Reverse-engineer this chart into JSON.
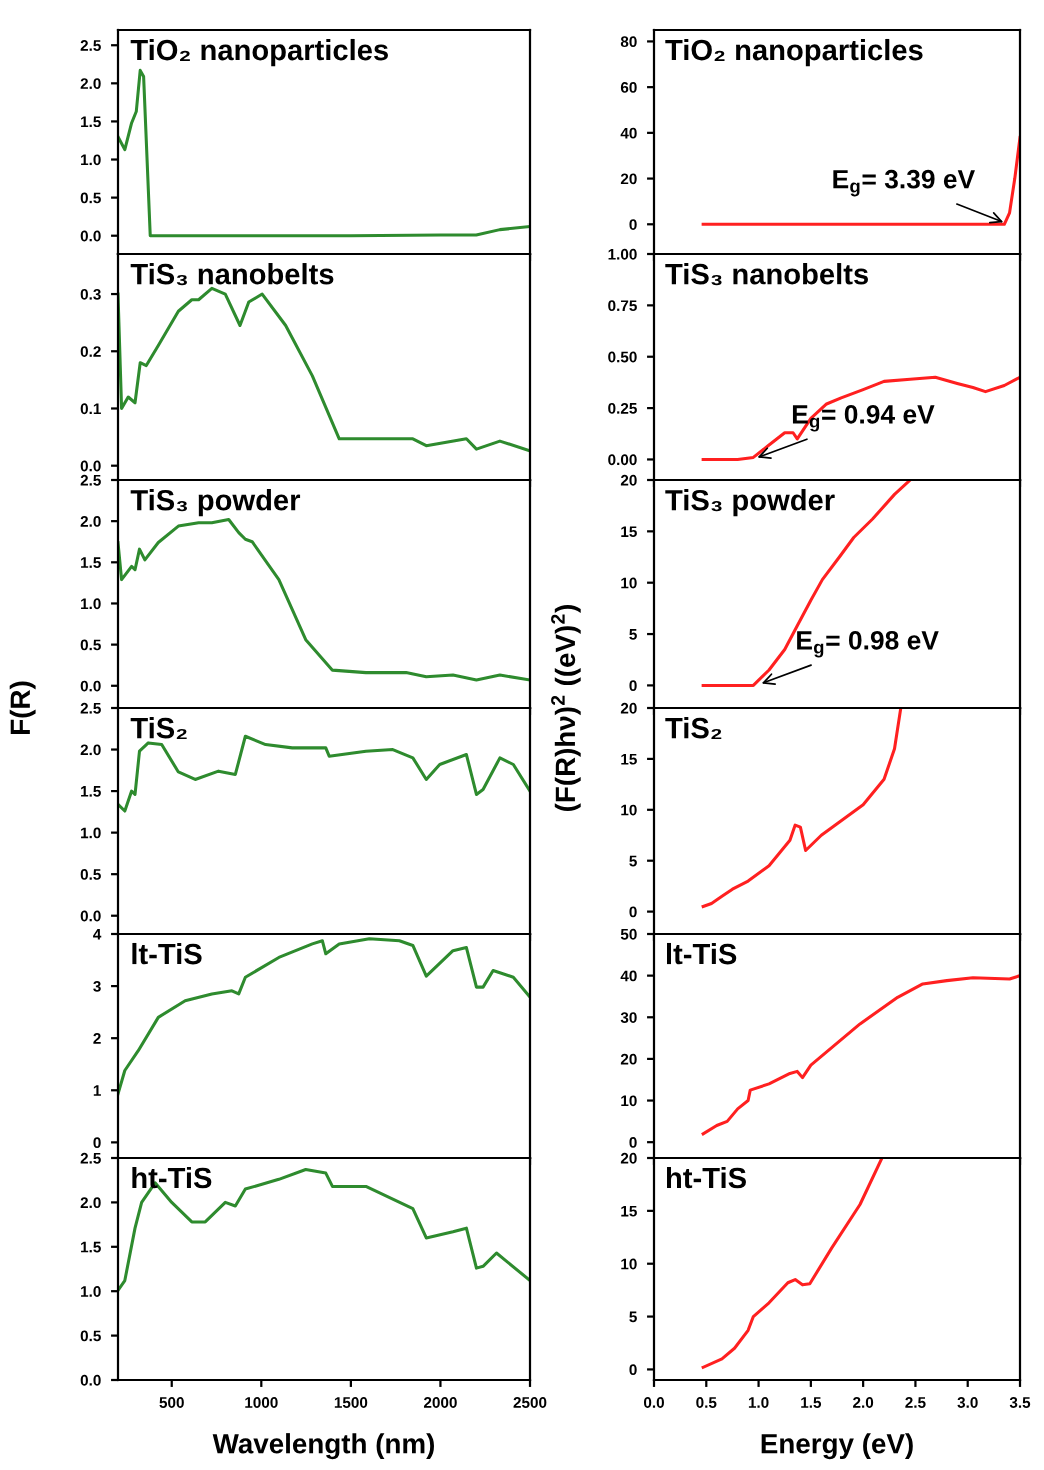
{
  "chart_data": [
    {
      "type": "line",
      "title": "TiO₂ nanoparticles",
      "xlim": [
        200,
        2500
      ],
      "ylim": [
        -0.24,
        2.7
      ],
      "xticks": [
        500,
        1000,
        1500,
        2000,
        2500
      ],
      "yticks": [
        {
          "value": 0,
          "label": "0.0"
        },
        {
          "value": 0.5,
          "label": "0.5"
        },
        {
          "value": 1,
          "label": "1.0"
        },
        {
          "value": 1.5,
          "label": "1.5"
        },
        {
          "value": 2,
          "label": "2.0"
        },
        {
          "value": 2.5,
          "label": "2.5"
        }
      ],
      "tick_labels": "y",
      "series": [
        {
          "color": "#2e8b2e",
          "x": [
            200,
            238,
            276,
            302,
            324,
            343,
            380,
            1000,
            1500,
            2000,
            2200,
            2332,
            2500
          ],
          "values": [
            1.3,
            1.13,
            1.48,
            1.63,
            2.17,
            2.09,
            0.0,
            0.0,
            0.0,
            0.01,
            0.01,
            0.08,
            0.12
          ]
        }
      ]
    },
    {
      "type": "line",
      "title": "TiS₃ nanobelts",
      "xlim": [
        200,
        2500
      ],
      "ylim": [
        -0.025,
        0.37
      ],
      "xticks": [
        500,
        1000,
        1500,
        2000,
        2500
      ],
      "yticks": [
        {
          "value": 0,
          "label": "0.0"
        },
        {
          "value": 0.1,
          "label": "0.1"
        },
        {
          "value": 0.2,
          "label": "0.2"
        },
        {
          "value": 0.3,
          "label": "0.3"
        }
      ],
      "tick_labels": "y",
      "series": [
        {
          "color": "#2e8b2e",
          "x": [
            200,
            220,
            257,
            295,
            324,
            358,
            425,
            537,
            612,
            650,
            724,
            799,
            881,
            930,
            1005,
            1136,
            1285,
            1435,
            1621,
            1846,
            1921,
            2145,
            2201,
            2332,
            2500
          ],
          "values": [
            0.3,
            0.1,
            0.12,
            0.11,
            0.18,
            0.175,
            0.21,
            0.27,
            0.29,
            0.29,
            0.31,
            0.3,
            0.245,
            0.286,
            0.3,
            0.245,
            0.157,
            0.047,
            0.047,
            0.047,
            0.035,
            0.047,
            0.029,
            0.043,
            0.026
          ]
        }
      ]
    },
    {
      "type": "line",
      "title": "TiS₃ powder",
      "xlim": [
        200,
        2500
      ],
      "ylim": [
        -0.27,
        2.5
      ],
      "xticks": [
        500,
        1000,
        1500,
        2000,
        2500
      ],
      "yticks": [
        {
          "value": 0,
          "label": "0.0"
        },
        {
          "value": 0.5,
          "label": "0.5"
        },
        {
          "value": 1,
          "label": "1.0"
        },
        {
          "value": 1.5,
          "label": "1.5"
        },
        {
          "value": 2,
          "label": "2.0"
        },
        {
          "value": 2.5,
          "label": "2.5"
        }
      ],
      "tick_labels": "y",
      "ylabel": "F(R)",
      "series": [
        {
          "color": "#2e8b2e",
          "x": [
            200,
            220,
            276,
            295,
            320,
            350,
            425,
            537,
            650,
            724,
            818,
            874,
            911,
            949,
            1098,
            1248,
            1397,
            1584,
            1808,
            1921,
            2070,
            2201,
            2332,
            2500
          ],
          "values": [
            1.74,
            1.29,
            1.45,
            1.41,
            1.66,
            1.53,
            1.74,
            1.94,
            1.98,
            1.98,
            2.02,
            1.86,
            1.78,
            1.75,
            1.29,
            0.56,
            0.19,
            0.16,
            0.16,
            0.11,
            0.13,
            0.07,
            0.13,
            0.07
          ]
        }
      ]
    },
    {
      "type": "line",
      "title": "TiS₂",
      "xlim": [
        200,
        2500
      ],
      "ylim": [
        -0.22,
        2.5
      ],
      "xticks": [
        500,
        1000,
        1500,
        2000,
        2500
      ],
      "yticks": [
        {
          "value": 0,
          "label": "0.0"
        },
        {
          "value": 0.5,
          "label": "0.5"
        },
        {
          "value": 1,
          "label": "1.0"
        },
        {
          "value": 1.5,
          "label": "1.5"
        },
        {
          "value": 2,
          "label": "2.0"
        },
        {
          "value": 2.5,
          "label": "2.5"
        }
      ],
      "tick_labels": "y",
      "series": [
        {
          "color": "#2e8b2e",
          "x": [
            200,
            238,
            276,
            295,
            320,
            369,
            444,
            537,
            631,
            761,
            855,
            911,
            1024,
            1173,
            1360,
            1379,
            1584,
            1734,
            1846,
            1921,
            1996,
            2145,
            2201,
            2238,
            2332,
            2407,
            2500
          ],
          "values": [
            1.34,
            1.26,
            1.5,
            1.46,
            1.98,
            2.08,
            2.06,
            1.73,
            1.64,
            1.74,
            1.7,
            2.16,
            2.06,
            2.02,
            2.02,
            1.92,
            1.98,
            2.0,
            1.9,
            1.64,
            1.82,
            1.94,
            1.46,
            1.52,
            1.9,
            1.82,
            1.5
          ]
        }
      ]
    },
    {
      "type": "line",
      "title": "lt-TiS",
      "xlim": [
        200,
        2500
      ],
      "ylim": [
        -0.3,
        4
      ],
      "xticks": [
        500,
        1000,
        1500,
        2000,
        2500
      ],
      "yticks": [
        0,
        1,
        2,
        3,
        4
      ],
      "tick_labels": "y",
      "series": [
        {
          "color": "#2e8b2e",
          "x": [
            200,
            238,
            313,
            425,
            575,
            724,
            836,
            874,
            911,
            1098,
            1285,
            1341,
            1360,
            1435,
            1603,
            1771,
            1846,
            1921,
            2070,
            2145,
            2201,
            2238,
            2294,
            2407,
            2500
          ],
          "values": [
            0.93,
            1.38,
            1.76,
            2.4,
            2.72,
            2.85,
            2.91,
            2.85,
            3.17,
            3.55,
            3.81,
            3.87,
            3.62,
            3.81,
            3.91,
            3.87,
            3.78,
            3.19,
            3.68,
            3.74,
            2.98,
            2.98,
            3.3,
            3.17,
            2.79
          ]
        }
      ]
    },
    {
      "type": "line",
      "title": "ht-TiS",
      "xlim": [
        200,
        2500
      ],
      "ylim": [
        0,
        2.5
      ],
      "xticks": [
        500,
        1000,
        1500,
        2000,
        2500
      ],
      "yticks": [
        {
          "value": 0,
          "label": "0.0"
        },
        {
          "value": 0.5,
          "label": "0.5"
        },
        {
          "value": 1,
          "label": "1.0"
        },
        {
          "value": 1.5,
          "label": "1.5"
        },
        {
          "value": 2,
          "label": "2.0"
        },
        {
          "value": 2.5,
          "label": "2.5"
        }
      ],
      "xlabel": "Wavelength (nm)",
      "series": [
        {
          "color": "#2e8b2e",
          "x": [
            200,
            238,
            295,
            332,
            407,
            500,
            612,
            687,
            799,
            855,
            911,
            1098,
            1248,
            1360,
            1397,
            1584,
            1846,
            1921,
            2070,
            2145,
            2201,
            2238,
            2313,
            2500
          ],
          "values": [
            1.01,
            1.12,
            1.71,
            2.0,
            2.22,
            2.0,
            1.78,
            1.78,
            2.0,
            1.96,
            2.15,
            2.26,
            2.37,
            2.33,
            2.18,
            2.18,
            1.93,
            1.6,
            1.67,
            1.71,
            1.26,
            1.28,
            1.43,
            1.12
          ]
        }
      ]
    },
    {
      "type": "line",
      "title": "TiO₂ nanoparticles",
      "xlim": [
        0,
        3.5
      ],
      "ylim": [
        -13,
        85
      ],
      "xticks": [
        0,
        0.5,
        1,
        1.5,
        2,
        2.5,
        3,
        3.5
      ],
      "yticks": [
        0,
        20,
        40,
        60,
        80
      ],
      "tick_labels": "y",
      "annotations": [
        {
          "text": "E$_{g}$= 3.39 eV",
          "x": 3.39,
          "y": 0
        }
      ],
      "series": [
        {
          "color": "#ff2020",
          "x": [
            0.47,
            1.0,
            2.0,
            3.0,
            3.35,
            3.4,
            3.45,
            3.5
          ],
          "values": [
            0,
            0,
            0,
            0,
            0,
            5,
            20,
            38
          ]
        }
      ]
    },
    {
      "type": "line",
      "title": "TiS₃ nanobelts",
      "xlim": [
        0,
        3.5
      ],
      "ylim": [
        -0.1,
        1.0
      ],
      "xticks": [
        0,
        0.5,
        1,
        1.5,
        2,
        2.5,
        3,
        3.5
      ],
      "yticks": [
        {
          "value": 0,
          "label": "0.00"
        },
        {
          "value": 0.25,
          "label": "0.25"
        },
        {
          "value": 0.5,
          "label": "0.50"
        },
        {
          "value": 0.75,
          "label": "0.75"
        },
        {
          "value": 1.0,
          "label": "1.00"
        }
      ],
      "tick_labels": "y",
      "annotations": [
        {
          "text": "E$_{g}$= 0.94 eV",
          "x": 0.94,
          "y": 0
        }
      ],
      "series": [
        {
          "color": "#ff2020",
          "x": [
            0.47,
            0.8,
            0.95,
            1.1,
            1.25,
            1.33,
            1.37,
            1.5,
            1.65,
            1.79,
            2.0,
            2.2,
            2.45,
            2.69,
            2.9,
            3.05,
            3.17,
            3.35,
            3.5
          ],
          "values": [
            0,
            0,
            0.01,
            0.07,
            0.13,
            0.13,
            0.1,
            0.2,
            0.27,
            0.3,
            0.34,
            0.38,
            0.39,
            0.4,
            0.37,
            0.35,
            0.33,
            0.36,
            0.4
          ]
        }
      ]
    },
    {
      "type": "line",
      "title": "TiS₃ powder",
      "xlim": [
        0,
        3.5
      ],
      "ylim": [
        -2.2,
        20
      ],
      "xticks": [
        0,
        0.5,
        1,
        1.5,
        2,
        2.5,
        3,
        3.5
      ],
      "yticks": [
        0,
        5,
        10,
        15,
        20
      ],
      "tick_labels": "y",
      "ylabel": "(F(R)hν)$^{2}$ ((eV)$^{2}$)",
      "annotations": [
        {
          "text": "E$_{g}$= 0.98 eV",
          "x": 0.98,
          "y": 0
        }
      ],
      "series": [
        {
          "color": "#ff2020",
          "x": [
            0.47,
            0.8,
            0.95,
            1.1,
            1.25,
            1.37,
            1.5,
            1.61,
            1.78,
            1.91,
            2.09,
            2.3,
            2.45
          ],
          "values": [
            0,
            0,
            0,
            1.5,
            3.5,
            5.8,
            8.3,
            10.3,
            12.6,
            14.4,
            16.2,
            18.6,
            20
          ]
        }
      ]
    },
    {
      "type": "line",
      "title": "TiS₂",
      "xlim": [
        0,
        3.5
      ],
      "ylim": [
        -2.2,
        20
      ],
      "xticks": [
        0,
        0.5,
        1,
        1.5,
        2,
        2.5,
        3,
        3.5
      ],
      "yticks": [
        0,
        5,
        10,
        15,
        20
      ],
      "tick_labels": "y",
      "series": [
        {
          "color": "#ff2020",
          "x": [
            0.47,
            0.55,
            0.65,
            0.75,
            0.9,
            1.1,
            1.3,
            1.35,
            1.4,
            1.45,
            1.6,
            1.8,
            2.0,
            2.2,
            2.3,
            2.36
          ],
          "values": [
            0.5,
            0.8,
            1.5,
            2.2,
            3,
            4.5,
            7,
            8.5,
            8.3,
            6,
            7.5,
            9,
            10.5,
            13,
            16,
            20
          ]
        }
      ]
    },
    {
      "type": "line",
      "title": "lt-TiS",
      "xlim": [
        0,
        3.5
      ],
      "ylim": [
        -3.8,
        50
      ],
      "xticks": [
        0,
        0.5,
        1,
        1.5,
        2,
        2.5,
        3,
        3.5
      ],
      "yticks": [
        0,
        10,
        20,
        30,
        40,
        50
      ],
      "tick_labels": "y",
      "series": [
        {
          "color": "#ff2020",
          "x": [
            0.47,
            0.6,
            0.7,
            0.8,
            0.9,
            0.92,
            1.1,
            1.3,
            1.37,
            1.42,
            1.5,
            1.97,
            2.33,
            2.57,
            2.8,
            3.05,
            3.4,
            3.5
          ],
          "values": [
            2,
            4,
            5,
            8,
            10,
            12.5,
            14,
            16.5,
            17,
            15.5,
            18.5,
            28.4,
            34.8,
            38,
            38.8,
            39.5,
            39.2,
            40
          ]
        }
      ]
    },
    {
      "type": "line",
      "title": "ht-TiS",
      "xlim": [
        0,
        3.5
      ],
      "ylim": [
        -1,
        20
      ],
      "xticks": [
        {
          "value": 0,
          "label": "0.0"
        },
        {
          "value": 0.5,
          "label": "0.5"
        },
        {
          "value": 1,
          "label": "1.0"
        },
        {
          "value": 1.5,
          "label": "1.5"
        },
        {
          "value": 2,
          "label": "2.0"
        },
        {
          "value": 2.5,
          "label": "2.5"
        },
        {
          "value": 3,
          "label": "3.0"
        },
        {
          "value": 3.5,
          "label": "3.5"
        }
      ],
      "yticks": [
        0,
        5,
        10,
        15,
        20
      ],
      "xlabel": "Energy (eV)",
      "series": [
        {
          "color": "#ff2020",
          "x": [
            0.47,
            0.65,
            0.77,
            0.9,
            0.95,
            1.1,
            1.28,
            1.35,
            1.42,
            1.49,
            1.7,
            1.97,
            2.18
          ],
          "values": [
            0.2,
            1,
            2,
            3.7,
            5,
            6.3,
            8.2,
            8.5,
            8,
            8.1,
            11.5,
            15.6,
            20
          ]
        }
      ]
    }
  ]
}
